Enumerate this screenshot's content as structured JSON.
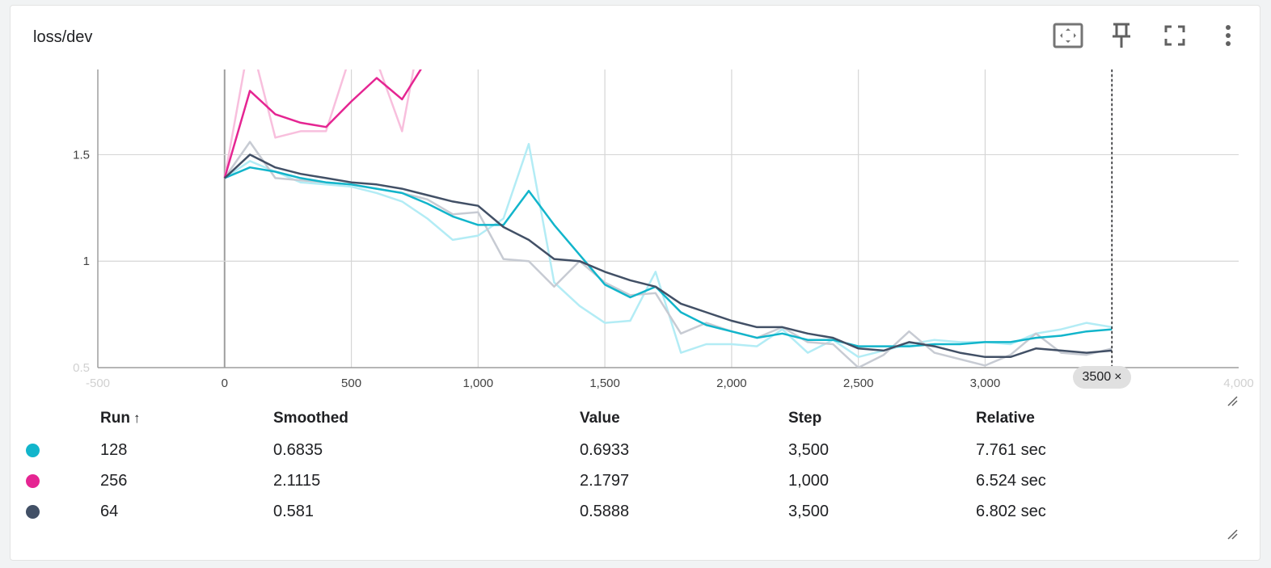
{
  "card": {
    "title": "loss/dev",
    "toolbar": {
      "fit_icon": "fit-domain-icon",
      "pin_icon": "pin-icon",
      "fullscreen_icon": "fullscreen-icon",
      "more_icon": "more-vert-icon"
    }
  },
  "step_chip": {
    "label": "3500",
    "close_glyph": "×"
  },
  "table": {
    "headers": {
      "run": "Run",
      "run_sort": "↑",
      "smoothed": "Smoothed",
      "value": "Value",
      "step": "Step",
      "relative": "Relative"
    },
    "rows": [
      {
        "color": "#12b5cb",
        "run": "128",
        "smoothed": "0.6835",
        "value": "0.6933",
        "step": "3,500",
        "relative": "7.761 sec"
      },
      {
        "color": "#e52592",
        "run": "256",
        "smoothed": "2.1115",
        "value": "2.1797",
        "step": "1,000",
        "relative": "6.524 sec"
      },
      {
        "color": "#425066",
        "run": "64",
        "smoothed": "0.581",
        "value": "0.5888",
        "step": "3,500",
        "relative": "6.802 sec"
      }
    ]
  },
  "chart_data": {
    "type": "line",
    "title": "loss/dev",
    "xlim": [
      -500,
      4000
    ],
    "ylim": [
      0.5,
      1.9
    ],
    "x_ticks": [
      -500,
      0,
      500,
      1000,
      1500,
      2000,
      2500,
      3000,
      3500,
      4000
    ],
    "x_tick_labels": [
      "-500",
      "0",
      "500",
      "1,000",
      "1,500",
      "2,000",
      "2,500",
      "3,000",
      "",
      "4,000"
    ],
    "y_ticks": [
      0.5,
      1,
      1.5
    ],
    "y_tick_labels": [
      "0.5",
      "1",
      "1.5"
    ],
    "grid": true,
    "cursor_step": 3500,
    "series": [
      {
        "name": "128",
        "color": "#12b5cb",
        "raw_color": "#b3ecf5",
        "x": [
          0,
          100,
          200,
          300,
          400,
          500,
          600,
          700,
          800,
          900,
          1000,
          1100,
          1200,
          1300,
          1400,
          1500,
          1600,
          1700,
          1800,
          1900,
          2000,
          2100,
          2200,
          2300,
          2400,
          2500,
          2600,
          2700,
          2800,
          2900,
          3000,
          3100,
          3200,
          3300,
          3400,
          3500
        ],
        "raw": [
          1.39,
          1.47,
          1.42,
          1.37,
          1.36,
          1.35,
          1.32,
          1.28,
          1.2,
          1.1,
          1.12,
          1.2,
          1.55,
          0.9,
          0.79,
          0.71,
          0.72,
          0.95,
          0.57,
          0.61,
          0.61,
          0.6,
          0.68,
          0.57,
          0.63,
          0.55,
          0.58,
          0.61,
          0.63,
          0.62,
          0.62,
          0.61,
          0.66,
          0.68,
          0.71,
          0.69
        ],
        "smoothed": [
          1.39,
          1.44,
          1.42,
          1.39,
          1.37,
          1.36,
          1.34,
          1.32,
          1.27,
          1.21,
          1.17,
          1.17,
          1.33,
          1.17,
          1.03,
          0.89,
          0.83,
          0.88,
          0.76,
          0.7,
          0.67,
          0.64,
          0.66,
          0.63,
          0.63,
          0.6,
          0.6,
          0.6,
          0.61,
          0.61,
          0.62,
          0.62,
          0.64,
          0.65,
          0.67,
          0.68
        ]
      },
      {
        "name": "256",
        "color": "#e52592",
        "raw_color": "#f8bfdd",
        "x": [
          0,
          100,
          200,
          300,
          400,
          500,
          600,
          700,
          800,
          900,
          1000
        ],
        "raw": [
          1.39,
          2.05,
          1.58,
          1.61,
          1.61,
          1.98,
          1.94,
          1.61,
          2.25,
          2.4,
          2.18
        ],
        "smoothed": [
          1.39,
          1.8,
          1.69,
          1.65,
          1.63,
          1.75,
          1.86,
          1.76,
          1.95,
          2.05,
          2.11
        ]
      },
      {
        "name": "64",
        "color": "#425066",
        "raw_color": "#c7cbd3",
        "x": [
          0,
          100,
          200,
          300,
          400,
          500,
          600,
          700,
          800,
          900,
          1000,
          1100,
          1200,
          1300,
          1400,
          1500,
          1600,
          1700,
          1800,
          1900,
          2000,
          2100,
          2200,
          2300,
          2400,
          2500,
          2600,
          2700,
          2800,
          2900,
          3000,
          3100,
          3200,
          3300,
          3400,
          3500
        ],
        "raw": [
          1.39,
          1.56,
          1.39,
          1.38,
          1.37,
          1.36,
          1.34,
          1.32,
          1.29,
          1.22,
          1.23,
          1.01,
          1.0,
          0.88,
          1.0,
          0.9,
          0.84,
          0.85,
          0.66,
          0.71,
          0.67,
          0.64,
          0.69,
          0.62,
          0.61,
          0.5,
          0.56,
          0.67,
          0.57,
          0.54,
          0.51,
          0.56,
          0.66,
          0.57,
          0.56,
          0.59
        ],
        "smoothed": [
          1.39,
          1.5,
          1.44,
          1.41,
          1.39,
          1.37,
          1.36,
          1.34,
          1.31,
          1.28,
          1.26,
          1.16,
          1.1,
          1.01,
          1.0,
          0.95,
          0.91,
          0.88,
          0.8,
          0.76,
          0.72,
          0.69,
          0.69,
          0.66,
          0.64,
          0.59,
          0.58,
          0.62,
          0.6,
          0.57,
          0.55,
          0.55,
          0.59,
          0.58,
          0.57,
          0.58
        ]
      }
    ]
  }
}
